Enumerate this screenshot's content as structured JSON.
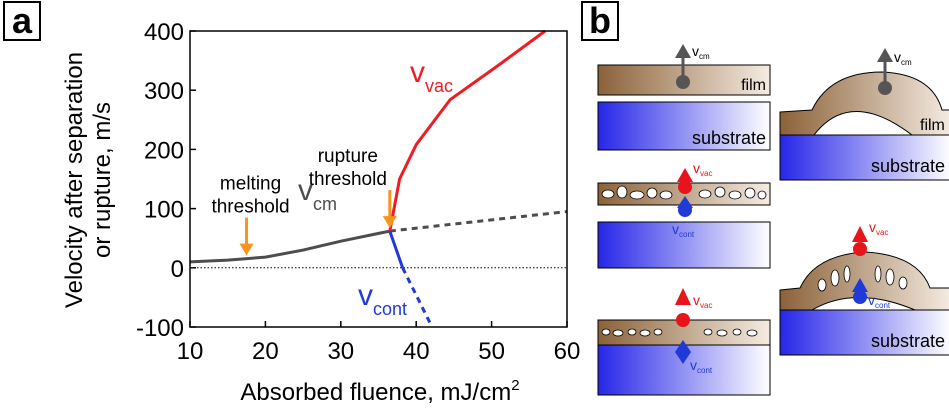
{
  "panels": [
    "a",
    "b"
  ],
  "chart_data": {
    "type": "line",
    "xlabel": "Absorbed fluence, mJ/cm",
    "xlabel_sup": "2",
    "ylabel": [
      "Velocity after separation",
      "or rupture, m/s"
    ],
    "xlim": [
      10,
      60
    ],
    "xticks": [
      10,
      20,
      30,
      40,
      50,
      60
    ],
    "ylim": [
      -100,
      400
    ],
    "yticks": [
      -100,
      0,
      100,
      200,
      300,
      400
    ],
    "grid": false,
    "zero_line": 0,
    "series": [
      {
        "name": "v",
        "name_sub": "cm",
        "color": "#4d4d4d",
        "dash": false,
        "x": [
          10,
          15,
          20,
          25,
          30,
          36.5
        ],
        "values": [
          10,
          13,
          18,
          30,
          45,
          62
        ]
      },
      {
        "color": "#4d4d4d",
        "dash": true,
        "x": [
          36.5,
          60
        ],
        "values": [
          62,
          95
        ]
      },
      {
        "name": "v",
        "name_sub": "vac",
        "color": "#ee1c24",
        "dash": false,
        "x": [
          36.5,
          37.8,
          40,
          44.5,
          51,
          57.1
        ],
        "values": [
          62,
          150,
          208,
          284,
          343,
          400
        ]
      },
      {
        "name": "v",
        "name_sub": "cont",
        "color": "#1f3ad6",
        "dash": false,
        "x": [
          36.5,
          38.2
        ],
        "values": [
          62,
          0
        ]
      },
      {
        "color": "#1f3ad6",
        "dash": true,
        "x": [
          38.2,
          42.1
        ],
        "values": [
          0,
          -100
        ]
      }
    ],
    "annotations": [
      {
        "lines": [
          "melting",
          "threshold"
        ],
        "x": 17.5,
        "color": "#f7941d"
      },
      {
        "lines": [
          "rupture",
          "threshold"
        ],
        "x": 36.5,
        "color": "#f7941d"
      }
    ]
  },
  "diagram": {
    "cells": [
      {
        "film": "film",
        "substrate": "substrate",
        "arrows": [
          {
            "symbol": "v",
            "sub": "cm"
          }
        ]
      },
      {
        "film": "film",
        "substrate": "substrate",
        "arrows": [
          {
            "symbol": "v",
            "sub": "cm"
          }
        ]
      },
      {
        "arrows": [
          {
            "symbol": "v",
            "sub": "vac"
          },
          {
            "symbol": "v",
            "sub": "cont"
          }
        ]
      },
      {
        "substrate": "substrate",
        "arrows": [
          {
            "symbol": "v",
            "sub": "vac"
          },
          {
            "symbol": "v",
            "sub": "cont"
          }
        ]
      },
      {
        "arrows": [
          {
            "symbol": "v",
            "sub": "vac"
          },
          {
            "symbol": "v",
            "sub": "cont"
          }
        ]
      }
    ]
  }
}
